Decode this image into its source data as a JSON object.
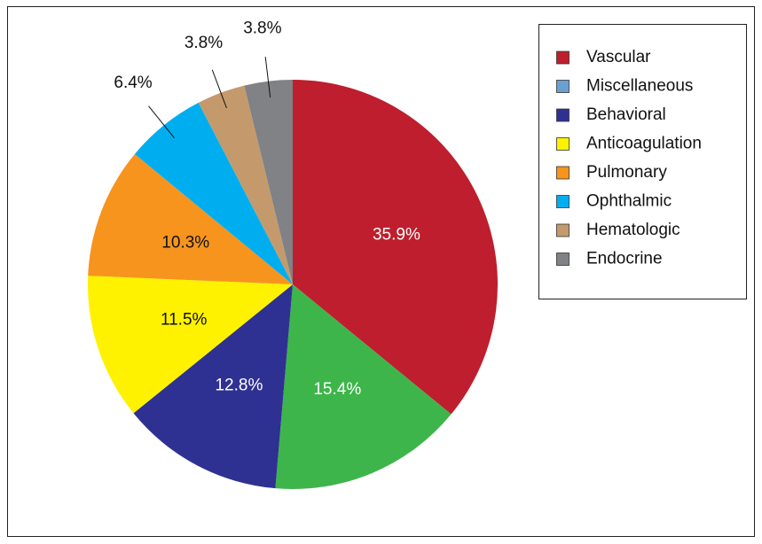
{
  "chart_data": {
    "type": "pie",
    "categories": [
      "Vascular",
      "Miscellaneous",
      "Behavioral",
      "Anticoagulation",
      "Pulmonary",
      "Ophthalmic",
      "Hematologic",
      "Endocrine"
    ],
    "values": [
      35.9,
      15.4,
      12.8,
      11.5,
      10.3,
      6.4,
      3.8,
      3.8
    ],
    "value_labels": [
      "35.9%",
      "15.4%",
      "12.8%",
      "11.5%",
      "10.3%",
      "6.4%",
      "3.8%",
      "3.8%"
    ],
    "colors": [
      "#be1e2d",
      "#3db54a",
      "#2e3192",
      "#fff200",
      "#f7941d",
      "#00aeef",
      "#c49a6c",
      "#808285"
    ],
    "legend_colors": [
      "#be1e2d",
      "#6a9fd4",
      "#2e3192",
      "#fff200",
      "#f7941d",
      "#00aeef",
      "#c49a6c",
      "#808285"
    ],
    "legend": "top-right"
  }
}
